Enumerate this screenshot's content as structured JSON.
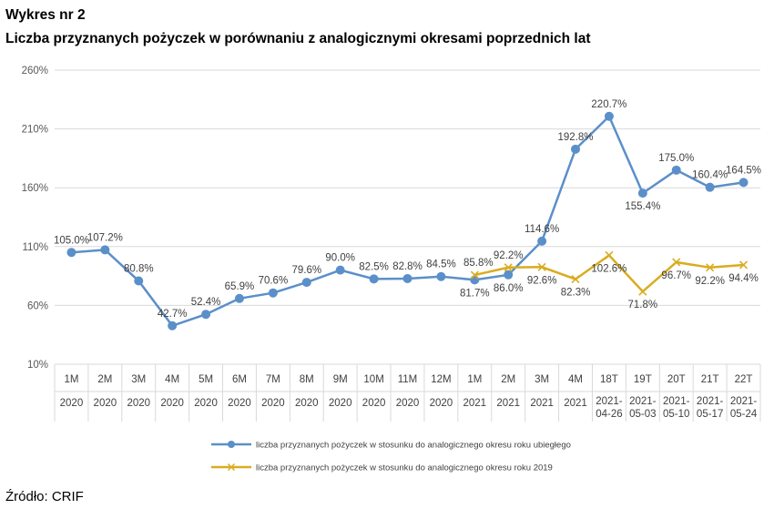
{
  "header": {
    "label": "Wykres nr 2",
    "title": "Liczba przyznanych pożyczek w porównaniu z analogicznymi okresami poprzednich lat"
  },
  "source": "Źródło: CRIF",
  "colors": {
    "series1": "#5b8fc9",
    "series2": "#d9ac1f"
  },
  "chart_data": {
    "type": "line",
    "yticks": [
      "10%",
      "60%",
      "110%",
      "160%",
      "210%",
      "260%"
    ],
    "ylim": [
      10,
      260
    ],
    "grid": true,
    "legend_position": "bottom",
    "categories": [
      {
        "top": "1M",
        "bottom": "2020"
      },
      {
        "top": "2M",
        "bottom": "2020"
      },
      {
        "top": "3M",
        "bottom": "2020"
      },
      {
        "top": "4M",
        "bottom": "2020"
      },
      {
        "top": "5M",
        "bottom": "2020"
      },
      {
        "top": "6M",
        "bottom": "2020"
      },
      {
        "top": "7M",
        "bottom": "2020"
      },
      {
        "top": "8M",
        "bottom": "2020"
      },
      {
        "top": "9M",
        "bottom": "2020"
      },
      {
        "top": "10M",
        "bottom": "2020"
      },
      {
        "top": "11M",
        "bottom": "2020"
      },
      {
        "top": "12M",
        "bottom": "2020"
      },
      {
        "top": "1M",
        "bottom": "2021"
      },
      {
        "top": "2M",
        "bottom": "2021"
      },
      {
        "top": "3M",
        "bottom": "2021"
      },
      {
        "top": "4M",
        "bottom": "2021"
      },
      {
        "top": "18T",
        "bottom": "2021-04-26"
      },
      {
        "top": "19T",
        "bottom": "2021-05-03"
      },
      {
        "top": "20T",
        "bottom": "2021-05-10"
      },
      {
        "top": "21T",
        "bottom": "2021-05-17"
      },
      {
        "top": "22T",
        "bottom": "2021-05-24"
      }
    ],
    "series": [
      {
        "name": "liczba przyznanych pożyczek w stosunku do analogicznego okresu roku ubiegłego",
        "values": [
          105.0,
          107.2,
          80.8,
          42.7,
          52.4,
          65.9,
          70.6,
          79.6,
          90.0,
          82.5,
          82.8,
          84.5,
          81.7,
          86.0,
          114.6,
          192.8,
          220.7,
          155.4,
          175.0,
          160.4,
          164.5
        ],
        "labels": [
          "105.0%",
          "107.2%",
          "80.8%",
          "42.7%",
          "52.4%",
          "65.9%",
          "70.6%",
          "79.6%",
          "90.0%",
          "82.5%",
          "82.8%",
          "84.5%",
          "81.7%",
          "86.0%",
          "114.6%",
          "192.8%",
          "220.7%",
          "155.4%",
          "175.0%",
          "160.4%",
          "164.5%"
        ]
      },
      {
        "name": "liczba przyznanych pożyczek w stosunku do analogicznego okresu roku 2019",
        "values": [
          null,
          null,
          null,
          null,
          null,
          null,
          null,
          null,
          null,
          null,
          null,
          null,
          85.8,
          92.2,
          92.6,
          82.3,
          102.6,
          71.8,
          96.7,
          92.2,
          94.4
        ],
        "labels": [
          null,
          null,
          null,
          null,
          null,
          null,
          null,
          null,
          null,
          null,
          null,
          null,
          "85.8%",
          "92.2%",
          "92.6%",
          "82.3%",
          "102.6%",
          "71.8%",
          "96.7%",
          "92.2%",
          "94.4%"
        ]
      }
    ]
  }
}
